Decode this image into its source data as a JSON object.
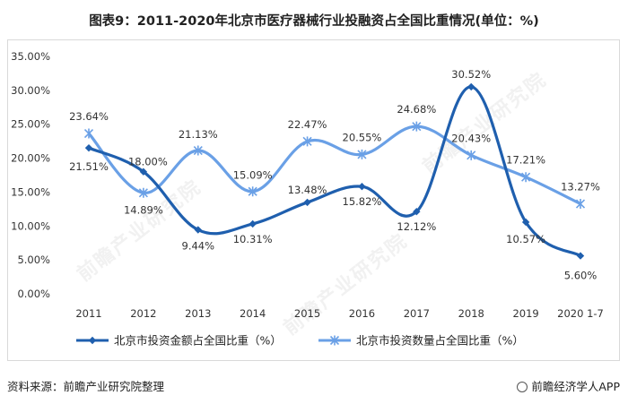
{
  "title": "图表9：2011-2020年北京市医疗器械行业投融资占全国比重情况(单位：%)",
  "watermark": "前瞻产业研究院",
  "footer": {
    "source": "资料来源：前瞻产业研究院整理",
    "brand": "前瞻经济学人APP",
    "brand_icon": "eye-logo-icon"
  },
  "chart_data": {
    "type": "line",
    "categories": [
      "2011",
      "2012",
      "2013",
      "2014",
      "2015",
      "2016",
      "2017",
      "2018",
      "2019",
      "2020 1-7"
    ],
    "y_ticks": [
      "35.00%",
      "30.00%",
      "25.00%",
      "20.00%",
      "15.00%",
      "10.00%",
      "5.00%",
      "0.00%"
    ],
    "ylim": [
      0,
      35
    ],
    "grid": false,
    "legend": "bottom",
    "series": [
      {
        "name": "北京市投资金额占全国比重（%）",
        "values": [
          21.51,
          18.0,
          9.44,
          10.31,
          13.48,
          15.82,
          12.12,
          30.52,
          10.57,
          5.6
        ],
        "labels": [
          "21.51%",
          "18.00%",
          "9.44%",
          "10.31%",
          "13.48%",
          "15.82%",
          "12.12%",
          "30.52%",
          "10.57%",
          "5.60%"
        ],
        "color": "#1f5fae",
        "marker": "diamond"
      },
      {
        "name": "北京市投资数量占全国比重（%）",
        "values": [
          23.64,
          14.89,
          21.13,
          15.09,
          22.47,
          20.55,
          24.68,
          20.43,
          17.21,
          13.27
        ],
        "labels": [
          "23.64%",
          "14.89%",
          "21.13%",
          "15.09%",
          "22.47%",
          "20.55%",
          "24.68%",
          "20.43%",
          "17.21%",
          "13.27%"
        ],
        "color": "#6aa0e6",
        "marker": "star"
      }
    ]
  }
}
